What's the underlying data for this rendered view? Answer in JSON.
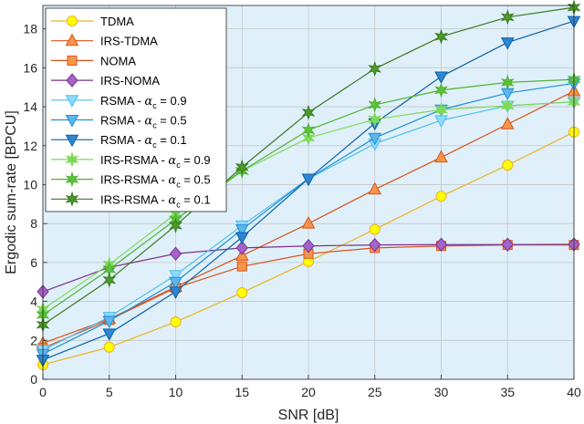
{
  "chart_data": {
    "type": "line",
    "title": "",
    "xlabel": "SNR [dB]",
    "ylabel": "Ergodic sum-rate [BPCU]",
    "xlim": [
      0,
      40
    ],
    "ylim": [
      0,
      19.2
    ],
    "xticks": [
      0,
      5,
      10,
      15,
      20,
      25,
      30,
      35,
      40
    ],
    "yticks": [
      0,
      2,
      4,
      6,
      8,
      10,
      12,
      14,
      16,
      18
    ],
    "grid": true,
    "background": "#dff0fa",
    "legend_position": "top-left",
    "x": [
      0,
      5,
      10,
      15,
      20,
      25,
      30,
      35,
      40
    ],
    "series": [
      {
        "name": "TDMA",
        "legend": {
          "pre": "TDMA",
          "sub": "",
          "post": ""
        },
        "color": "#edb120",
        "fill": "#ffff00",
        "marker": "circle",
        "values": [
          0.75,
          1.65,
          2.95,
          4.45,
          6.05,
          7.7,
          9.4,
          11.0,
          12.7
        ]
      },
      {
        "name": "IRS-TDMA",
        "legend": {
          "pre": "IRS-TDMA",
          "sub": "",
          "post": ""
        },
        "color": "#d95319",
        "fill": "#f4964a",
        "marker": "triangle-up",
        "values": [
          1.85,
          3.1,
          4.75,
          6.35,
          8.0,
          9.75,
          11.4,
          13.1,
          14.8
        ]
      },
      {
        "name": "NOMA",
        "legend": {
          "pre": "NOMA",
          "sub": "",
          "post": ""
        },
        "color": "#d95319",
        "fill": "#f4964a",
        "marker": "square",
        "values": [
          1.6,
          3.05,
          4.7,
          5.8,
          6.45,
          6.75,
          6.85,
          6.9,
          6.9
        ]
      },
      {
        "name": "IRS-NOMA",
        "legend": {
          "pre": "IRS-NOMA",
          "sub": "",
          "post": ""
        },
        "color": "#7e2f8e",
        "fill": "#a463c9",
        "marker": "diamond",
        "values": [
          4.5,
          5.75,
          6.45,
          6.75,
          6.85,
          6.9,
          6.92,
          6.92,
          6.93
        ]
      },
      {
        "name": "RSMA - alpha_c = 0.9",
        "legend": {
          "pre": "RSMA - ",
          "sub": "c",
          "post": " = 0.9"
        },
        "color": "#4dbeee",
        "fill": "#8fd9ff",
        "marker": "triangle-down",
        "values": [
          1.5,
          3.2,
          5.35,
          7.9,
          10.3,
          12.1,
          13.3,
          14.05,
          14.25
        ]
      },
      {
        "name": "RSMA - alpha_c = 0.5",
        "legend": {
          "pre": "RSMA - ",
          "sub": "c",
          "post": " = 0.5"
        },
        "color": "#1f8fd6",
        "fill": "#5cb6ee",
        "marker": "triangle-down",
        "values": [
          1.3,
          3.0,
          5.0,
          7.7,
          10.3,
          12.4,
          13.85,
          14.7,
          15.2
        ]
      },
      {
        "name": "RSMA - alpha_c = 0.1",
        "legend": {
          "pre": "RSMA - ",
          "sub": "c",
          "post": " = 0.1"
        },
        "color": "#0b5fa8",
        "fill": "#2f86d1",
        "marker": "triangle-down",
        "values": [
          1.0,
          2.35,
          4.5,
          7.3,
          10.3,
          13.15,
          15.55,
          17.3,
          18.4
        ]
      },
      {
        "name": "IRS-RSMA - alpha_c = 0.9",
        "legend": {
          "pre": "IRS-RSMA - ",
          "sub": "c",
          "post": " = 0.9"
        },
        "color": "#7ed957",
        "fill": "#7ed957",
        "marker": "star",
        "values": [
          3.6,
          5.9,
          8.5,
          10.7,
          12.4,
          13.35,
          13.85,
          14.05,
          14.25
        ]
      },
      {
        "name": "IRS-RSMA - alpha_c = 0.5",
        "legend": {
          "pre": "IRS-RSMA - ",
          "sub": "c",
          "post": " = 0.5"
        },
        "color": "#4fb330",
        "fill": "#5cc23a",
        "marker": "star",
        "values": [
          3.3,
          5.65,
          8.2,
          10.7,
          12.8,
          14.1,
          14.85,
          15.25,
          15.4
        ]
      },
      {
        "name": "IRS-RSMA - alpha_c = 0.1",
        "legend": {
          "pre": "IRS-RSMA - ",
          "sub": "c",
          "post": " = 0.1"
        },
        "color": "#3a7a1e",
        "fill": "#4d9a2a",
        "marker": "star",
        "values": [
          2.8,
          5.1,
          7.9,
          10.9,
          13.7,
          15.95,
          17.6,
          18.6,
          19.1
        ]
      }
    ]
  }
}
